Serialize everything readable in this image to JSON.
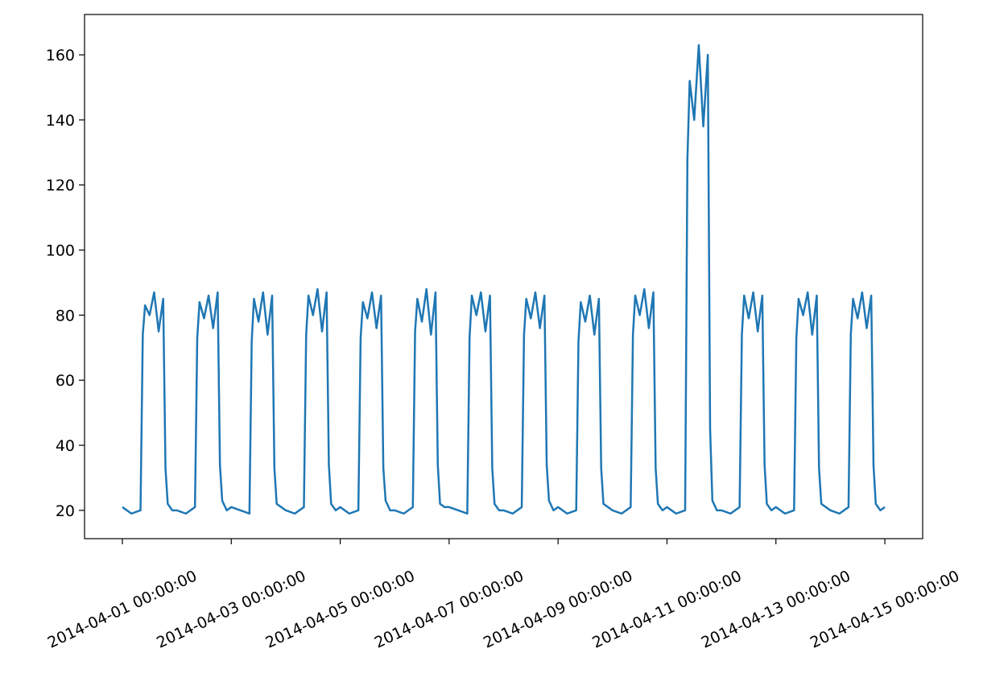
{
  "chart_data": {
    "type": "line",
    "color": "#1f77b4",
    "x": [
      "2014-04-01 00:00:00",
      "2014-04-01 04:00:00",
      "2014-04-01 08:00:00",
      "2014-04-01 09:00:00",
      "2014-04-01 10:00:00",
      "2014-04-01 12:00:00",
      "2014-04-01 14:00:00",
      "2014-04-01 16:00:00",
      "2014-04-01 18:00:00",
      "2014-04-01 19:00:00",
      "2014-04-01 20:00:00",
      "2014-04-01 22:00:00",
      "2014-04-02 00:00:00",
      "2014-04-02 04:00:00",
      "2014-04-02 08:00:00",
      "2014-04-02 09:00:00",
      "2014-04-02 10:00:00",
      "2014-04-02 12:00:00",
      "2014-04-02 14:00:00",
      "2014-04-02 16:00:00",
      "2014-04-02 18:00:00",
      "2014-04-02 19:00:00",
      "2014-04-02 20:00:00",
      "2014-04-02 22:00:00",
      "2014-04-03 00:00:00",
      "2014-04-03 04:00:00",
      "2014-04-03 08:00:00",
      "2014-04-03 09:00:00",
      "2014-04-03 10:00:00",
      "2014-04-03 12:00:00",
      "2014-04-03 14:00:00",
      "2014-04-03 16:00:00",
      "2014-04-03 18:00:00",
      "2014-04-03 19:00:00",
      "2014-04-03 20:00:00",
      "2014-04-03 22:00:00",
      "2014-04-04 00:00:00",
      "2014-04-04 04:00:00",
      "2014-04-04 08:00:00",
      "2014-04-04 09:00:00",
      "2014-04-04 10:00:00",
      "2014-04-04 12:00:00",
      "2014-04-04 14:00:00",
      "2014-04-04 16:00:00",
      "2014-04-04 18:00:00",
      "2014-04-04 19:00:00",
      "2014-04-04 20:00:00",
      "2014-04-04 22:00:00",
      "2014-04-05 00:00:00",
      "2014-04-05 04:00:00",
      "2014-04-05 08:00:00",
      "2014-04-05 09:00:00",
      "2014-04-05 10:00:00",
      "2014-04-05 12:00:00",
      "2014-04-05 14:00:00",
      "2014-04-05 16:00:00",
      "2014-04-05 18:00:00",
      "2014-04-05 19:00:00",
      "2014-04-05 20:00:00",
      "2014-04-05 22:00:00",
      "2014-04-06 00:00:00",
      "2014-04-06 04:00:00",
      "2014-04-06 08:00:00",
      "2014-04-06 09:00:00",
      "2014-04-06 10:00:00",
      "2014-04-06 12:00:00",
      "2014-04-06 14:00:00",
      "2014-04-06 16:00:00",
      "2014-04-06 18:00:00",
      "2014-04-06 19:00:00",
      "2014-04-06 20:00:00",
      "2014-04-06 22:00:00",
      "2014-04-07 00:00:00",
      "2014-04-07 04:00:00",
      "2014-04-07 08:00:00",
      "2014-04-07 09:00:00",
      "2014-04-07 10:00:00",
      "2014-04-07 12:00:00",
      "2014-04-07 14:00:00",
      "2014-04-07 16:00:00",
      "2014-04-07 18:00:00",
      "2014-04-07 19:00:00",
      "2014-04-07 20:00:00",
      "2014-04-07 22:00:00",
      "2014-04-08 00:00:00",
      "2014-04-08 04:00:00",
      "2014-04-08 08:00:00",
      "2014-04-08 09:00:00",
      "2014-04-08 10:00:00",
      "2014-04-08 12:00:00",
      "2014-04-08 14:00:00",
      "2014-04-08 16:00:00",
      "2014-04-08 18:00:00",
      "2014-04-08 19:00:00",
      "2014-04-08 20:00:00",
      "2014-04-08 22:00:00",
      "2014-04-09 00:00:00",
      "2014-04-09 04:00:00",
      "2014-04-09 08:00:00",
      "2014-04-09 09:00:00",
      "2014-04-09 10:00:00",
      "2014-04-09 12:00:00",
      "2014-04-09 14:00:00",
      "2014-04-09 16:00:00",
      "2014-04-09 18:00:00",
      "2014-04-09 19:00:00",
      "2014-04-09 20:00:00",
      "2014-04-09 22:00:00",
      "2014-04-10 00:00:00",
      "2014-04-10 04:00:00",
      "2014-04-10 08:00:00",
      "2014-04-10 09:00:00",
      "2014-04-10 10:00:00",
      "2014-04-10 12:00:00",
      "2014-04-10 14:00:00",
      "2014-04-10 16:00:00",
      "2014-04-10 18:00:00",
      "2014-04-10 19:00:00",
      "2014-04-10 20:00:00",
      "2014-04-10 22:00:00",
      "2014-04-11 00:00:00",
      "2014-04-11 04:00:00",
      "2014-04-11 08:00:00",
      "2014-04-11 09:00:00",
      "2014-04-11 10:00:00",
      "2014-04-11 12:00:00",
      "2014-04-11 14:00:00",
      "2014-04-11 16:00:00",
      "2014-04-11 18:00:00",
      "2014-04-11 19:00:00",
      "2014-04-11 20:00:00",
      "2014-04-11 22:00:00",
      "2014-04-12 00:00:00",
      "2014-04-12 04:00:00",
      "2014-04-12 08:00:00",
      "2014-04-12 09:00:00",
      "2014-04-12 10:00:00",
      "2014-04-12 12:00:00",
      "2014-04-12 14:00:00",
      "2014-04-12 16:00:00",
      "2014-04-12 18:00:00",
      "2014-04-12 19:00:00",
      "2014-04-12 20:00:00",
      "2014-04-12 22:00:00",
      "2014-04-13 00:00:00",
      "2014-04-13 04:00:00",
      "2014-04-13 08:00:00",
      "2014-04-13 09:00:00",
      "2014-04-13 10:00:00",
      "2014-04-13 12:00:00",
      "2014-04-13 14:00:00",
      "2014-04-13 16:00:00",
      "2014-04-13 18:00:00",
      "2014-04-13 19:00:00",
      "2014-04-13 20:00:00",
      "2014-04-13 22:00:00",
      "2014-04-14 00:00:00",
      "2014-04-14 04:00:00",
      "2014-04-14 08:00:00",
      "2014-04-14 09:00:00",
      "2014-04-14 10:00:00",
      "2014-04-14 12:00:00",
      "2014-04-14 14:00:00",
      "2014-04-14 16:00:00",
      "2014-04-14 18:00:00",
      "2014-04-14 19:00:00",
      "2014-04-14 20:00:00",
      "2014-04-14 22:00:00",
      "2014-04-15 00:00:00"
    ],
    "values": [
      21,
      19,
      20,
      74,
      83,
      80,
      87,
      75,
      85,
      33,
      22,
      20,
      20,
      19,
      21,
      73,
      84,
      79,
      86,
      76,
      87,
      34,
      23,
      20,
      21,
      20,
      19,
      72,
      85,
      78,
      87,
      74,
      86,
      33,
      22,
      21,
      20,
      19,
      21,
      74,
      86,
      80,
      88,
      75,
      87,
      34,
      22,
      20,
      21,
      19,
      20,
      73,
      84,
      79,
      87,
      76,
      86,
      33,
      23,
      20,
      20,
      19,
      21,
      75,
      85,
      78,
      88,
      74,
      87,
      34,
      22,
      21,
      21,
      20,
      19,
      73,
      86,
      80,
      87,
      75,
      86,
      33,
      22,
      20,
      20,
      19,
      21,
      74,
      85,
      79,
      87,
      76,
      86,
      34,
      23,
      20,
      21,
      19,
      20,
      72,
      84,
      78,
      86,
      74,
      85,
      33,
      22,
      21,
      20,
      19,
      21,
      74,
      86,
      80,
      88,
      76,
      87,
      33,
      22,
      20,
      21,
      19,
      20,
      128,
      152,
      140,
      163,
      138,
      160,
      45,
      23,
      20,
      20,
      19,
      21,
      74,
      86,
      79,
      87,
      75,
      86,
      34,
      22,
      20,
      21,
      19,
      20,
      73,
      85,
      80,
      87,
      74,
      86,
      33,
      22,
      21,
      20,
      19,
      21,
      74,
      85,
      79,
      87,
      76,
      86,
      34,
      22,
      20,
      21
    ],
    "xlim": [
      "2014-03-31 07:20:00",
      "2014-04-15 16:40:00"
    ],
    "xticks": [
      "2014-04-01 00:00:00",
      "2014-04-03 00:00:00",
      "2014-04-05 00:00:00",
      "2014-04-07 00:00:00",
      "2014-04-09 00:00:00",
      "2014-04-11 00:00:00",
      "2014-04-13 00:00:00",
      "2014-04-15 00:00:00"
    ],
    "ylim": [
      11.3,
      172.4
    ],
    "yticks": [
      20,
      40,
      60,
      80,
      100,
      120,
      140,
      160
    ]
  }
}
